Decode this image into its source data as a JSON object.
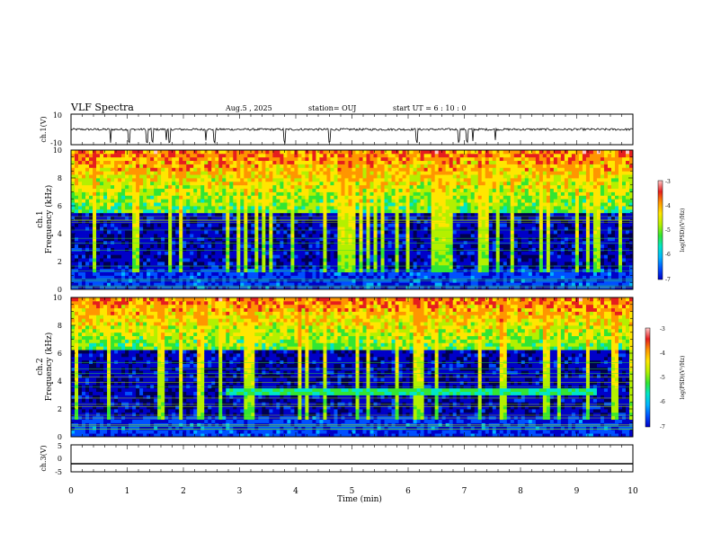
{
  "header": {
    "title": "VLF Spectra",
    "date": "Aug.5 , 2025",
    "station": "station= OUJ",
    "start": "start UT = 6 : 10 : 0"
  },
  "chart_data": [
    {
      "type": "line",
      "name": "ch1-waveform",
      "ylabel": "ch.1(V)",
      "ylim": [
        -10,
        10
      ],
      "yticks": [
        "10",
        "-10"
      ],
      "xlim": [
        0,
        10
      ],
      "baseline": 0,
      "spikes_x_min": [
        0.7,
        1.03,
        1.35,
        1.45,
        1.7,
        1.75,
        2.4,
        2.55,
        3.8,
        4.6,
        6.15,
        6.9,
        7.05,
        7.15,
        7.55
      ]
    },
    {
      "type": "heatmap",
      "name": "ch1-spectrogram",
      "ylabel": "ch.1",
      "ylabel2": "Frequency (kHz)",
      "ylim": [
        0,
        10
      ],
      "yticks": [
        "0",
        "2",
        "4",
        "6",
        "8",
        "10"
      ],
      "xlim": [
        0,
        10
      ],
      "colorbar": {
        "label": "log(PSD)(V²/Hz)",
        "range": [
          -7,
          -3
        ],
        "ticks": [
          "-3",
          "-4",
          "-5",
          "-6",
          "-7"
        ]
      },
      "noise_floor_khz": 5.5
    },
    {
      "type": "heatmap",
      "name": "ch2-spectrogram",
      "ylabel": "ch.2",
      "ylabel2": "Frequency (kHz)",
      "ylim": [
        0,
        10
      ],
      "yticks": [
        "0",
        "2",
        "4",
        "6",
        "8",
        "10"
      ],
      "xlim": [
        0,
        10
      ],
      "colorbar": {
        "label": "log(PSD)(V²/Hz)",
        "range": [
          -7,
          -3
        ],
        "ticks": [
          "-3",
          "-4",
          "-5",
          "-6",
          "-7"
        ]
      },
      "noise_floor_khz": 6.2,
      "band": {
        "f_khz": [
          3.0,
          3.5
        ],
        "t_min": [
          2.75,
          9.35
        ]
      }
    },
    {
      "type": "line",
      "name": "ch3-waveform",
      "ylabel": "ch.3(V)",
      "ylim": [
        -5,
        5
      ],
      "yticks": [
        "5",
        "0",
        "-5"
      ],
      "xlim": [
        0,
        10
      ],
      "level": -2
    }
  ],
  "xaxis": {
    "label": "Time (min)",
    "ticks": [
      "0",
      "1",
      "2",
      "3",
      "4",
      "5",
      "6",
      "7",
      "8",
      "9",
      "10"
    ]
  },
  "colors": {
    "scale": [
      "#000050",
      "#0000c8",
      "#0050ff",
      "#00b4ff",
      "#00e6c8",
      "#32e632",
      "#b4f000",
      "#ffe600",
      "#ff9600",
      "#e61e1e",
      "#ffc8c8",
      "#ffffff"
    ]
  }
}
